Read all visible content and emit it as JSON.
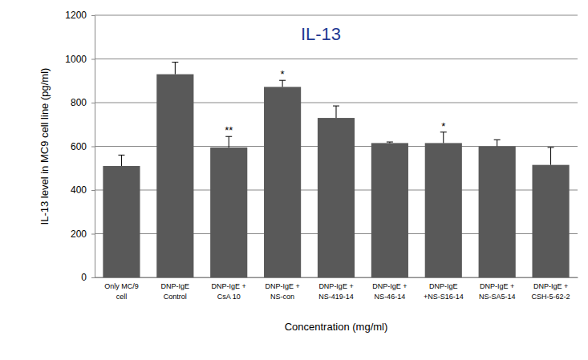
{
  "chart_data": {
    "type": "bar",
    "title": "IL-13",
    "x_label": "Concentration (mg/ml)",
    "y_label": "IL-13 level in MC9 cell line (pg/ml)",
    "categories": [
      "Only MC/9\ncell",
      "DNP-IgE\nControl",
      "DNP-IgE +\nCsA 10",
      "DNP-IgE +\nNS-con",
      "DNP-IgE +\nNS-419-14",
      "DNP-IgE +\nNS-46-14",
      "DNP-IgE\n+NS-S16-14",
      "DNP-IgE +\nNS-SA5-14",
      "DNP-IgE +\nCSH-5-62-2"
    ],
    "values": [
      510,
      930,
      595,
      872,
      730,
      615,
      615,
      600,
      515
    ],
    "errors": [
      50,
      55,
      50,
      30,
      55,
      5,
      50,
      30,
      80
    ],
    "significance": [
      null,
      null,
      "**",
      "*",
      null,
      null,
      "*",
      null,
      null
    ],
    "color": "#595959",
    "ylim": [
      0,
      1200
    ],
    "yticks": [
      0,
      200,
      400,
      600,
      800,
      1000,
      1200
    ],
    "grid": true
  }
}
